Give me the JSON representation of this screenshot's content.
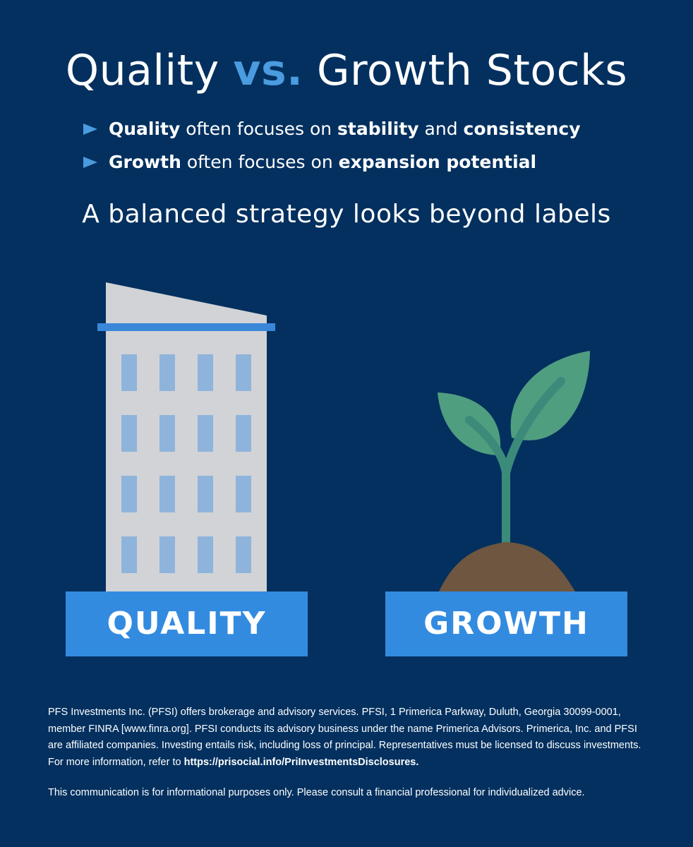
{
  "header": {
    "title": {
      "part1": "Quality",
      "part2": "vs.",
      "part3": "Growth Stocks"
    },
    "bullets": [
      [
        {
          "text": "Quality",
          "bold": true
        },
        {
          "text": " often focuses on ",
          "bold": false
        },
        {
          "text": "stability",
          "bold": true
        },
        {
          "text": " and ",
          "bold": false
        },
        {
          "text": "consistency",
          "bold": true
        }
      ],
      [
        {
          "text": "Growth",
          "bold": true
        },
        {
          "text": " often focuses on ",
          "bold": false
        },
        {
          "text": "expansion potential",
          "bold": true
        }
      ]
    ],
    "subtitle": "A balanced strategy looks beyond labels"
  },
  "panels": {
    "left_label": "QUALITY",
    "right_label": "GROWTH"
  },
  "footer": {
    "disclosure": "PFS Investments Inc. (PFSI) offers brokerage and advisory services. PFSI, 1 Primerica Parkway, Duluth, Georgia 30099-0001, member FINRA [www.finra.org]. PFSI conducts its advisory business under the name Primerica Advisors. Primerica, Inc. and PFSI are affiliated companies. Investing entails risk, including loss of principal. Representatives must be licensed to discuss investments. For more information, refer to ",
    "link": "https://prisocial.info/PriInvestmentsDisclosures.",
    "note": "This communication is for informational purposes only. Please consult a financial professional for individualized advice."
  }
}
